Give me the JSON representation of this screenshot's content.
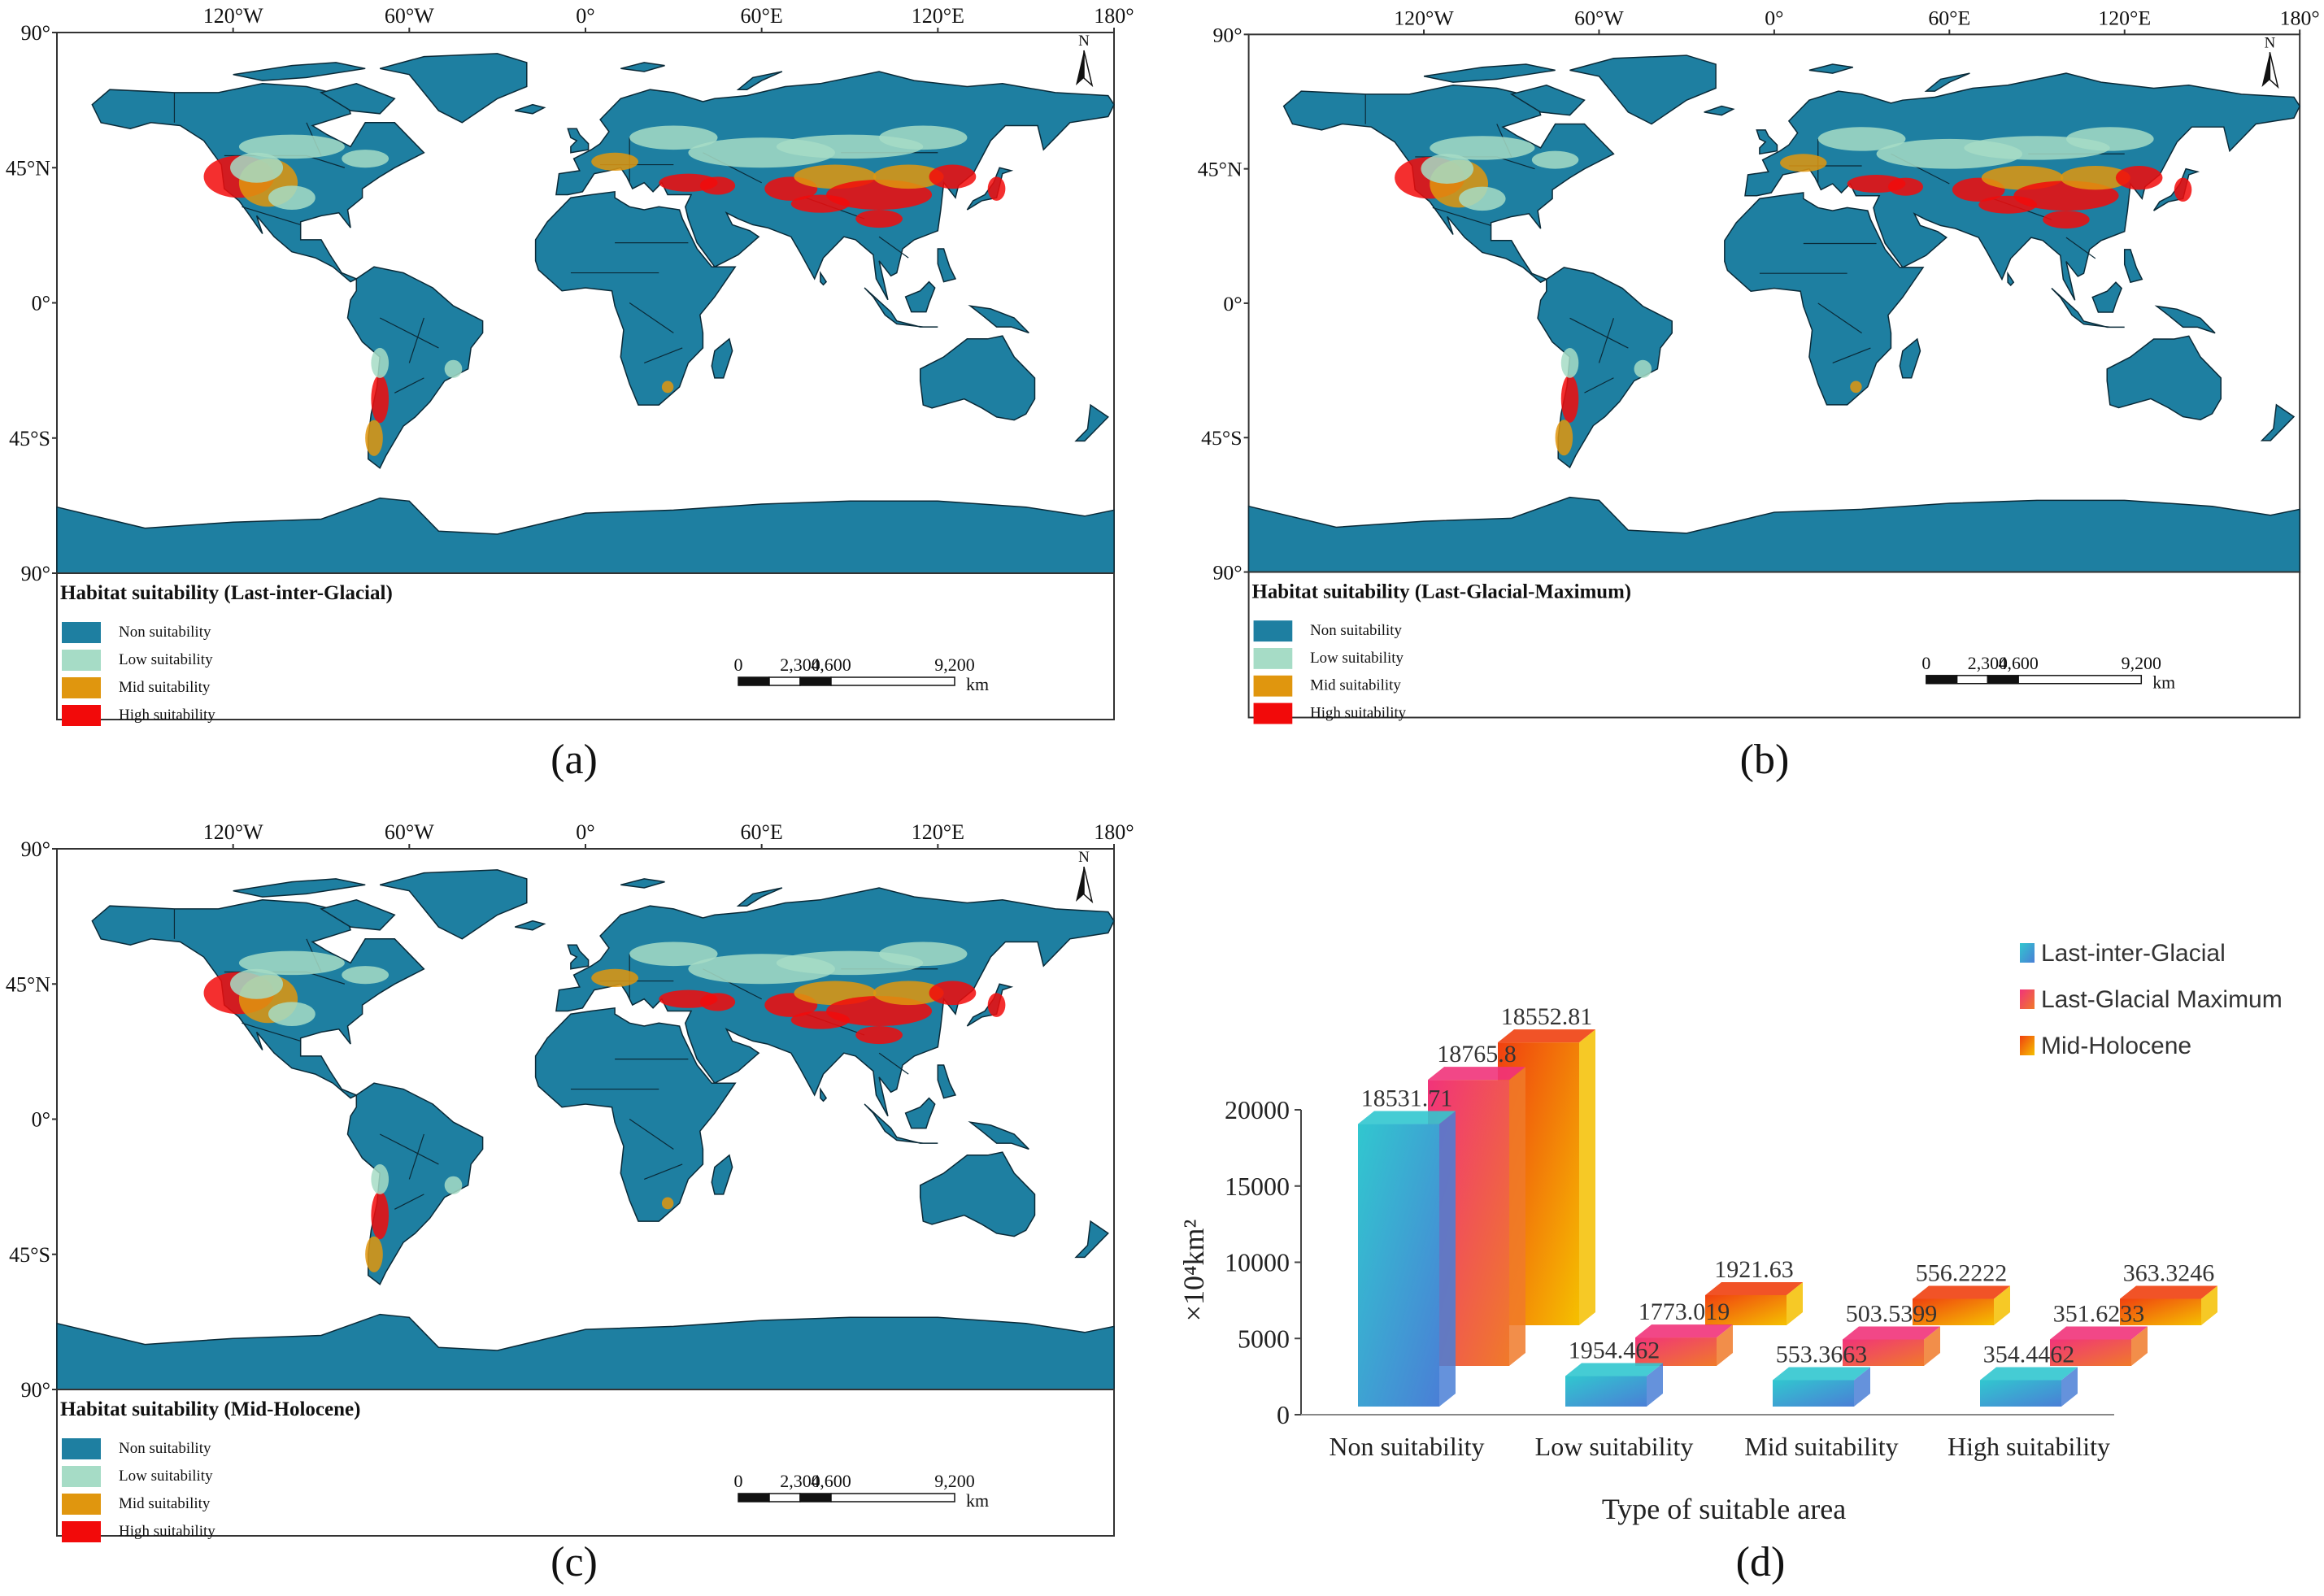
{
  "maps": [
    {
      "id": "a",
      "caption": "(a)",
      "legend_title": "Habitat suitability (Last-inter-Glacial)"
    },
    {
      "id": "b",
      "caption": "(b)",
      "legend_title": "Habitat suitability (Last-Glacial-Maximum)"
    },
    {
      "id": "c",
      "caption": "(c)",
      "legend_title": "Habitat suitability (Mid-Holocene)"
    }
  ],
  "map_common": {
    "lon_labels": [
      "120°W",
      "60°W",
      "0°",
      "60°E",
      "120°E",
      "180°"
    ],
    "lat_labels": [
      "90°",
      "45°N",
      "0°",
      "45°S",
      "90°"
    ],
    "north_arrow_label": "N",
    "legend_items": [
      {
        "label": "Non suitability",
        "color": "#1e7fa1"
      },
      {
        "label": "Low suitability",
        "color": "#a6dcc6"
      },
      {
        "label": "Mid suitability",
        "color": "#e0960e"
      },
      {
        "label": "High suitability",
        "color": "#f20a0a"
      }
    ],
    "scale_labels": [
      "0",
      "2,300",
      "4,600",
      "9,200"
    ],
    "scale_unit": "km",
    "colors": {
      "land": "#1e7fa1",
      "low": "#a6dcc6",
      "mid": "#e0960e",
      "high": "#f20a0a"
    }
  },
  "chart_caption": "(d)",
  "chart_data": {
    "type": "bar",
    "style": "3d",
    "categories": [
      "Non suitability",
      "Low suitability",
      "Mid suitability",
      "High suitability"
    ],
    "series": [
      {
        "name": "Last-inter-Glacial",
        "values": [
          18531.71,
          1954.462,
          553.3663,
          354.4462
        ],
        "labels": [
          "18531.71",
          "1954.462",
          "553.3663",
          "354.4462"
        ]
      },
      {
        "name": "Last-Glacial Maximum",
        "values": [
          18765.8,
          1773.019,
          503.5399,
          351.6233
        ],
        "labels": [
          "18765.8",
          "1773.019",
          "503.5399",
          "351.6233"
        ]
      },
      {
        "name": "Mid-Holocene",
        "values": [
          18552.81,
          1921.63,
          556.2222,
          363.3246
        ],
        "labels": [
          "18552.81",
          "1921.63",
          "556.2222",
          "363.3246"
        ]
      }
    ],
    "y_ticks": [
      "0",
      "5000",
      "10000",
      "15000",
      "20000"
    ],
    "ylim": [
      0,
      20000
    ],
    "ylabel": "×10⁴km²",
    "xlabel": "Type of suitable area",
    "legend_position": "top-right",
    "series_colors": [
      [
        "#31c7cf",
        "#4a7fd6"
      ],
      [
        "#f1337a",
        "#f07a2a"
      ],
      [
        "#f04010",
        "#f5c000"
      ]
    ]
  }
}
